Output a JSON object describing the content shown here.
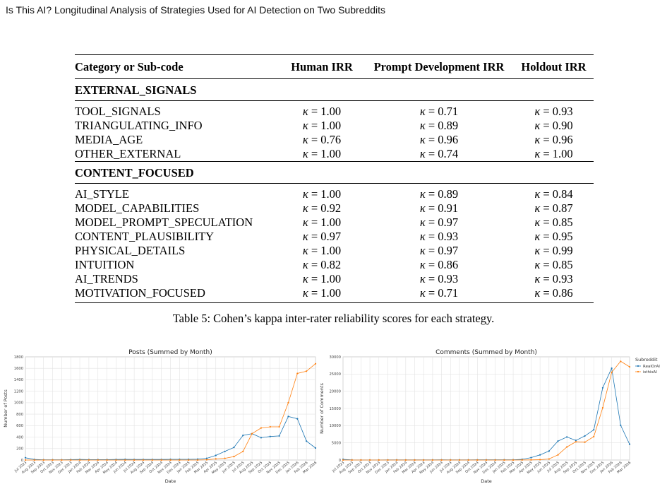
{
  "running_title": "Is This AI? Longitudinal Analysis of Strategies Used for AI Detection on Two Subreddits",
  "table": {
    "headers": [
      "Category or Sub-code",
      "Human IRR",
      "Prompt Development IRR",
      "Holdout IRR"
    ],
    "kappa_symbol": "κ",
    "groups": [
      {
        "category": "EXTERNAL_SIGNALS",
        "rows": [
          {
            "code": "TOOL_SIGNALS",
            "human": "1.00",
            "prompt": "0.71",
            "holdout": "0.93"
          },
          {
            "code": "TRIANGULATING_INFO",
            "human": "1.00",
            "prompt": "0.89",
            "holdout": "0.90"
          },
          {
            "code": "MEDIA_AGE",
            "human": "0.76",
            "prompt": "0.96",
            "holdout": "0.96"
          },
          {
            "code": "OTHER_EXTERNAL",
            "human": "1.00",
            "prompt": "0.74",
            "holdout": "1.00"
          }
        ]
      },
      {
        "category": "CONTENT_FOCUSED",
        "rows": [
          {
            "code": "AI_STYLE",
            "human": "1.00",
            "prompt": "0.89",
            "holdout": "0.84"
          },
          {
            "code": "MODEL_CAPABILITIES",
            "human": "0.92",
            "prompt": "0.91",
            "holdout": "0.87"
          },
          {
            "code": "MODEL_PROMPT_SPECULATION",
            "human": "1.00",
            "prompt": "0.97",
            "holdout": "0.85"
          },
          {
            "code": "CONTENT_PLAUSIBILITY",
            "human": "0.97",
            "prompt": "0.93",
            "holdout": "0.95"
          },
          {
            "code": "PHYSICAL_DETAILS",
            "human": "1.00",
            "prompt": "0.97",
            "holdout": "0.99"
          },
          {
            "code": "INTUITION",
            "human": "0.82",
            "prompt": "0.86",
            "holdout": "0.85"
          },
          {
            "code": "AI_TRENDS",
            "human": "1.00",
            "prompt": "0.93",
            "holdout": "0.93"
          },
          {
            "code": "MOTIVATION_FOCUSED",
            "human": "1.00",
            "prompt": "0.71",
            "holdout": "0.86"
          }
        ]
      }
    ],
    "caption": "Table 5: Cohen’s kappa inter-rater reliability scores for each strategy."
  },
  "chart_data": [
    {
      "type": "line",
      "title": "Posts (Summed by Month)",
      "xlabel": "Date",
      "ylabel": "Number of Posts",
      "ylim": [
        0,
        1800
      ],
      "yticks": [
        0,
        200,
        400,
        600,
        800,
        1000,
        1200,
        1400,
        1600,
        1800
      ],
      "grid": true,
      "categories": [
        "Jul 2023",
        "Aug 2023",
        "Sep 2023",
        "Oct 2023",
        "Nov 2023",
        "Dec 2023",
        "Jan 2024",
        "Feb 2024",
        "Mar 2024",
        "Apr 2024",
        "May 2024",
        "Jun 2024",
        "Jul 2024",
        "Aug 2024",
        "Sep 2024",
        "Oct 2024",
        "Nov 2024",
        "Dec 2024",
        "Jan 2025",
        "Feb 2025",
        "Mar 2025",
        "Apr 2025",
        "May 2025",
        "Jun 2025",
        "Jul 2025",
        "Aug 2025",
        "Sep 2025",
        "Oct 2025",
        "Nov 2025",
        "Dec 2025",
        "Jan 2026",
        "Feb 2026",
        "Mar 2026"
      ],
      "series": [
        {
          "name": "RealOrAI",
          "color": "#1f77b4",
          "values": [
            40,
            10,
            5,
            5,
            5,
            8,
            10,
            8,
            8,
            8,
            10,
            12,
            10,
            10,
            10,
            10,
            12,
            12,
            12,
            15,
            30,
            80,
            150,
            220,
            430,
            460,
            390,
            410,
            420,
            760,
            720,
            330,
            210
          ]
        },
        {
          "name": "isthisAI",
          "color": "#ff7f0e",
          "values": [
            0,
            0,
            0,
            0,
            0,
            0,
            0,
            0,
            0,
            0,
            0,
            0,
            0,
            0,
            0,
            0,
            0,
            0,
            0,
            0,
            5,
            20,
            30,
            60,
            150,
            460,
            560,
            580,
            580,
            1000,
            1510,
            1550,
            1680
          ]
        }
      ]
    },
    {
      "type": "line",
      "title": "Comments (Summed by Month)",
      "xlabel": "Date",
      "ylabel": "Number of Comments",
      "ylim": [
        0,
        30000
      ],
      "yticks": [
        0,
        5000,
        10000,
        15000,
        20000,
        25000,
        30000
      ],
      "grid": true,
      "legend": {
        "title": "Subreddit",
        "position": "outside-right"
      },
      "categories": [
        "Jul 2023",
        "Aug 2023",
        "Sep 2023",
        "Oct 2023",
        "Nov 2023",
        "Dec 2023",
        "Jan 2024",
        "Feb 2024",
        "Mar 2024",
        "Apr 2024",
        "May 2024",
        "Jun 2024",
        "Jul 2024",
        "Aug 2024",
        "Sep 2024",
        "Oct 2024",
        "Nov 2024",
        "Dec 2024",
        "Jan 2025",
        "Feb 2025",
        "Mar 2025",
        "Apr 2025",
        "May 2025",
        "Jun 2025",
        "Jul 2025",
        "Aug 2025",
        "Sep 2025",
        "Oct 2025",
        "Nov 2025",
        "Dec 2025",
        "Jan 2026",
        "Feb 2026",
        "Mar 2026"
      ],
      "series": [
        {
          "name": "RealOrAI",
          "color": "#1f77b4",
          "values": [
            200,
            50,
            30,
            30,
            30,
            40,
            50,
            40,
            40,
            40,
            50,
            60,
            50,
            50,
            50,
            60,
            60,
            60,
            70,
            80,
            200,
            700,
            1500,
            2600,
            5500,
            6700,
            5700,
            7000,
            8800,
            21000,
            26700,
            10100,
            4600
          ]
        },
        {
          "name": "isthisAI",
          "color": "#ff7f0e",
          "values": [
            0,
            0,
            0,
            0,
            0,
            0,
            0,
            0,
            0,
            0,
            0,
            0,
            0,
            0,
            0,
            0,
            0,
            0,
            0,
            0,
            20,
            50,
            100,
            300,
            1500,
            3800,
            5300,
            5200,
            6800,
            15200,
            25500,
            28700,
            27100
          ]
        }
      ]
    }
  ]
}
